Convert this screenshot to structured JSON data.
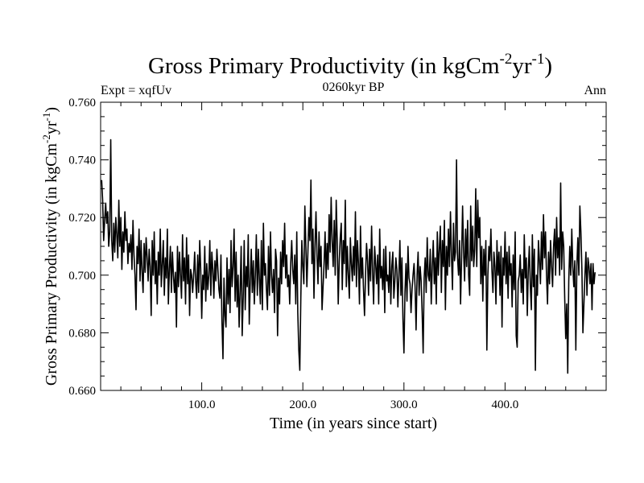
{
  "chart_data": {
    "type": "line",
    "title_main": "Gross Primary Productivity (in kgCm",
    "title_sup1": "-2",
    "title_mid": "yr",
    "title_sup2": "-1",
    "title_end": ")",
    "subtitle_left": "Expt = xqfUv",
    "subtitle_center": "0260kyr BP",
    "subtitle_right": "Ann",
    "xlabel": "Time (in years since start)",
    "ylabel_main": "Gross Primary Productivity (in kgCm",
    "ylabel_sup1": "-2",
    "ylabel_mid": "yr",
    "ylabel_sup2": "-1",
    "ylabel_end": ")",
    "xlim": [
      0,
      500
    ],
    "ylim": [
      0.66,
      0.76
    ],
    "xticks": [
      100,
      200,
      300,
      400
    ],
    "xtick_labels": [
      "100.0",
      "200.0",
      "300.0",
      "400.0"
    ],
    "yticks": [
      0.66,
      0.68,
      0.7,
      0.72,
      0.74,
      0.76
    ],
    "ytick_labels": [
      "0.660",
      "0.680",
      "0.700",
      "0.720",
      "0.740",
      "0.760"
    ],
    "x_start": 1,
    "x_step": 1,
    "series": [
      {
        "name": "Gross Primary Productivity",
        "color": "#000000",
        "values": [
          0.733,
          0.726,
          0.712,
          0.719,
          0.725,
          0.718,
          0.722,
          0.71,
          0.715,
          0.747,
          0.712,
          0.705,
          0.718,
          0.708,
          0.72,
          0.714,
          0.706,
          0.726,
          0.71,
          0.72,
          0.702,
          0.715,
          0.708,
          0.722,
          0.712,
          0.716,
          0.704,
          0.711,
          0.708,
          0.714,
          0.702,
          0.719,
          0.707,
          0.7,
          0.688,
          0.71,
          0.704,
          0.716,
          0.698,
          0.712,
          0.701,
          0.694,
          0.711,
          0.701,
          0.713,
          0.706,
          0.698,
          0.709,
          0.703,
          0.686,
          0.712,
          0.7,
          0.715,
          0.697,
          0.705,
          0.69,
          0.708,
          0.7,
          0.716,
          0.696,
          0.704,
          0.712,
          0.693,
          0.706,
          0.699,
          0.716,
          0.69,
          0.702,
          0.71,
          0.694,
          0.708,
          0.7,
          0.694,
          0.701,
          0.682,
          0.71,
          0.696,
          0.708,
          0.7,
          0.692,
          0.714,
          0.698,
          0.706,
          0.69,
          0.713,
          0.697,
          0.707,
          0.686,
          0.702,
          0.7,
          0.694,
          0.7,
          0.708,
          0.698,
          0.692,
          0.707,
          0.694,
          0.712,
          0.702,
          0.685,
          0.7,
          0.695,
          0.71,
          0.691,
          0.704,
          0.695,
          0.7,
          0.712,
          0.693,
          0.708,
          0.702,
          0.692,
          0.705,
          0.698,
          0.709,
          0.702,
          0.695,
          0.692,
          0.707,
          0.684,
          0.671,
          0.699,
          0.686,
          0.682,
          0.706,
          0.69,
          0.702,
          0.687,
          0.712,
          0.696,
          0.703,
          0.716,
          0.691,
          0.708,
          0.689,
          0.7,
          0.682,
          0.695,
          0.71,
          0.679,
          0.692,
          0.712,
          0.688,
          0.703,
          0.696,
          0.714,
          0.683,
          0.698,
          0.709,
          0.694,
          0.705,
          0.69,
          0.7,
          0.714,
          0.693,
          0.709,
          0.699,
          0.69,
          0.712,
          0.688,
          0.718,
          0.7,
          0.704,
          0.695,
          0.688,
          0.71,
          0.693,
          0.715,
          0.7,
          0.694,
          0.702,
          0.687,
          0.709,
          0.705,
          0.679,
          0.699,
          0.69,
          0.708,
          0.697,
          0.712,
          0.703,
          0.718,
          0.699,
          0.707,
          0.696,
          0.7,
          0.69,
          0.704,
          0.712,
          0.702,
          0.697,
          0.707,
          0.69,
          0.715,
          0.687,
          0.674,
          0.667,
          0.692,
          0.712,
          0.703,
          0.697,
          0.724,
          0.71,
          0.696,
          0.708,
          0.72,
          0.712,
          0.733,
          0.704,
          0.716,
          0.692,
          0.71,
          0.722,
          0.707,
          0.697,
          0.715,
          0.703,
          0.71,
          0.688,
          0.696,
          0.704,
          0.715,
          0.699,
          0.711,
          0.702,
          0.721,
          0.708,
          0.727,
          0.712,
          0.703,
          0.719,
          0.7,
          0.726,
          0.712,
          0.69,
          0.705,
          0.713,
          0.718,
          0.695,
          0.712,
          0.704,
          0.726,
          0.696,
          0.71,
          0.7,
          0.692,
          0.713,
          0.704,
          0.698,
          0.71,
          0.7,
          0.722,
          0.696,
          0.712,
          0.704,
          0.69,
          0.717,
          0.699,
          0.706,
          0.695,
          0.686,
          0.7,
          0.711,
          0.705,
          0.693,
          0.709,
          0.698,
          0.717,
          0.701,
          0.69,
          0.71,
          0.704,
          0.697,
          0.707,
          0.69,
          0.716,
          0.699,
          0.703,
          0.695,
          0.709,
          0.687,
          0.71,
          0.698,
          0.7,
          0.694,
          0.708,
          0.69,
          0.703,
          0.708,
          0.692,
          0.698,
          0.706,
          0.702,
          0.689,
          0.7,
          0.712,
          0.693,
          0.706,
          0.685,
          0.673,
          0.694,
          0.704,
          0.691,
          0.71,
          0.699,
          0.697,
          0.687,
          0.695,
          0.7,
          0.704,
          0.696,
          0.681,
          0.7,
          0.708,
          0.693,
          0.703,
          0.698,
          0.687,
          0.673,
          0.699,
          0.706,
          0.694,
          0.713,
          0.7,
          0.698,
          0.709,
          0.69,
          0.703,
          0.712,
          0.697,
          0.706,
          0.69,
          0.715,
          0.7,
          0.709,
          0.717,
          0.694,
          0.712,
          0.703,
          0.719,
          0.688,
          0.71,
          0.7,
          0.716,
          0.703,
          0.722,
          0.707,
          0.695,
          0.718,
          0.705,
          0.708,
          0.74,
          0.706,
          0.7,
          0.712,
          0.69,
          0.706,
          0.724,
          0.708,
          0.698,
          0.716,
          0.703,
          0.719,
          0.7,
          0.693,
          0.724,
          0.705,
          0.717,
          0.703,
          0.709,
          0.73,
          0.703,
          0.726,
          0.713,
          0.72,
          0.697,
          0.71,
          0.691,
          0.709,
          0.7,
          0.712,
          0.674,
          0.7,
          0.71,
          0.705,
          0.716,
          0.702,
          0.694,
          0.708,
          0.703,
          0.69,
          0.712,
          0.7,
          0.708,
          0.693,
          0.71,
          0.682,
          0.706,
          0.7,
          0.715,
          0.697,
          0.708,
          0.692,
          0.71,
          0.7,
          0.704,
          0.689,
          0.707,
          0.695,
          0.715,
          0.679,
          0.675,
          0.698,
          0.7,
          0.707,
          0.694,
          0.702,
          0.69,
          0.714,
          0.699,
          0.706,
          0.686,
          0.702,
          0.71,
          0.696,
          0.688,
          0.714,
          0.696,
          0.709,
          0.667,
          0.7,
          0.693,
          0.712,
          0.705,
          0.697,
          0.715,
          0.702,
          0.721,
          0.706,
          0.715,
          0.7,
          0.69,
          0.708,
          0.697,
          0.712,
          0.703,
          0.696,
          0.71,
          0.716,
          0.7,
          0.72,
          0.706,
          0.713,
          0.7,
          0.732,
          0.702,
          0.715,
          0.71,
          0.692,
          0.678,
          0.69,
          0.666,
          0.698,
          0.71,
          0.7,
          0.716,
          0.703,
          0.696,
          0.705,
          0.674,
          0.703,
          0.713,
          0.7,
          0.724,
          0.715,
          0.702,
          0.68,
          0.69,
          0.7,
          0.708,
          0.693,
          0.706,
          0.703,
          0.697,
          0.704,
          0.688,
          0.704,
          0.697,
          0.701
        ]
      }
    ]
  }
}
